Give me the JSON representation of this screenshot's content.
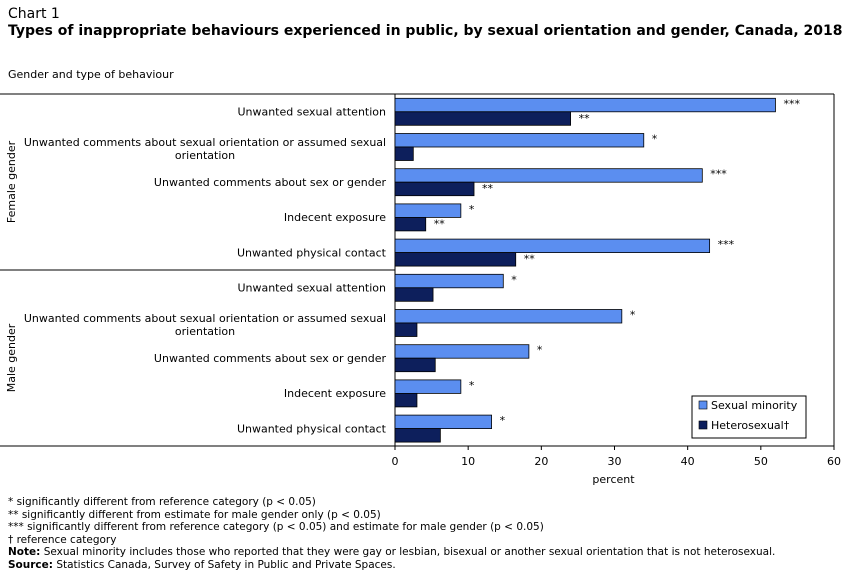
{
  "chart_number": "Chart 1",
  "title": "Types of inappropriate behaviours experienced in public, by sexual orientation and gender, Canada, 2018",
  "subtitle": "Gender and type of behaviour",
  "chart_data": {
    "type": "bar",
    "orientation": "horizontal",
    "groups": [
      {
        "name": "Female gender",
        "categories": [
          "Unwanted sexual attention",
          "Unwanted comments about sexual orientation or assumed sexual orientation",
          "Unwanted comments about sex or gender",
          "Indecent exposure",
          "Unwanted physical contact"
        ]
      },
      {
        "name": "Male gender",
        "categories": [
          "Unwanted sexual attention",
          "Unwanted comments about sexual orientation or assumed sexual orientation",
          "Unwanted comments about sex or gender",
          "Indecent exposure",
          "Unwanted physical contact"
        ]
      }
    ],
    "series": [
      {
        "name": "Sexual minority",
        "color": "#5b8ef0",
        "values": [
          52,
          34,
          42,
          9,
          43,
          14.8,
          31,
          18.3,
          9,
          13.2
        ],
        "flags": [
          "***",
          "*",
          "***",
          "*",
          "***",
          "*",
          "*",
          "*",
          "*",
          "*"
        ]
      },
      {
        "name": "Heterosexual†",
        "color": "#0d1f5c",
        "values": [
          24,
          2.5,
          10.8,
          4.2,
          16.5,
          5.2,
          3,
          5.5,
          3,
          6.2
        ],
        "flags": [
          "**",
          "",
          "**",
          "**",
          "**",
          "",
          "",
          "",
          "",
          ""
        ]
      }
    ],
    "xlabel": "percent",
    "xlim": [
      0,
      60
    ],
    "xticks": [
      0,
      10,
      20,
      30,
      40,
      50,
      60
    ],
    "legend_position": "bottom-right",
    "grid": false
  },
  "notes": {
    "footnote_1": "* significantly different from reference category (p < 0.05)",
    "footnote_2": "** significantly different from estimate for male gender only (p < 0.05)",
    "footnote_3": "*** significantly different from reference category (p < 0.05) and estimate for male gender (p < 0.05)",
    "footnote_4": "† reference category",
    "note_label": "Note:",
    "note_text": "Sexual minority includes those who reported that they were gay or lesbian, bisexual or another sexual orientation that is not heterosexual.",
    "source_label": "Source:",
    "source_text": "Statistics Canada, Survey of Safety in Public and Private Spaces."
  }
}
